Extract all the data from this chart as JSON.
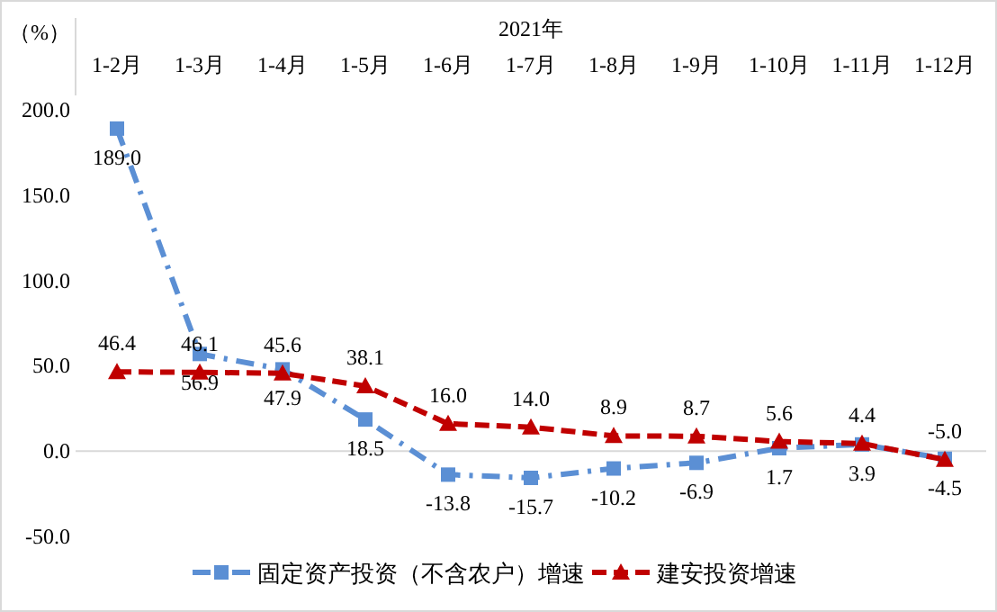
{
  "chart_data": {
    "type": "line",
    "xlabel": "2021年",
    "ylabel": "（%）",
    "categories": [
      "1-2月",
      "1-3月",
      "1-4月",
      "1-5月",
      "1-6月",
      "1-7月",
      "1-8月",
      "1-9月",
      "1-10月",
      "1-11月",
      "1-12月"
    ],
    "series": [
      {
        "name": "固定资产投资（不含农户）增速",
        "color": "#5b8fd4",
        "marker": "square",
        "line_style": "dashdot",
        "values": [
          189.0,
          56.9,
          47.9,
          18.5,
          -13.8,
          -15.7,
          -10.2,
          -6.9,
          1.7,
          3.9,
          -4.5
        ],
        "value_labels": [
          "189.0",
          "56.9",
          "47.9",
          "18.5",
          "-13.8",
          "-15.7",
          "-10.2",
          "-6.9",
          "1.7",
          "3.9",
          "-4.5"
        ]
      },
      {
        "name": "建安投资增速",
        "color": "#c00000",
        "marker": "triangle",
        "line_style": "dashed",
        "values": [
          46.4,
          46.1,
          45.6,
          38.1,
          16.0,
          14.0,
          8.9,
          8.7,
          5.6,
          4.4,
          -5.0
        ],
        "value_labels": [
          "46.4",
          "46.1",
          "45.6",
          "38.1",
          "16.0",
          "14.0",
          "8.9",
          "8.7",
          "5.6",
          "4.4",
          "-5.0"
        ]
      }
    ],
    "ylim": [
      -50,
      200
    ],
    "yticks": [
      {
        "value": -50,
        "label": "-50.0"
      },
      {
        "value": 0,
        "label": "0.0"
      },
      {
        "value": 50,
        "label": "50.0"
      },
      {
        "value": 100,
        "label": "100.0"
      },
      {
        "value": 150,
        "label": "150.0"
      },
      {
        "value": 200,
        "label": "200.0"
      }
    ],
    "legend": "bottom"
  }
}
